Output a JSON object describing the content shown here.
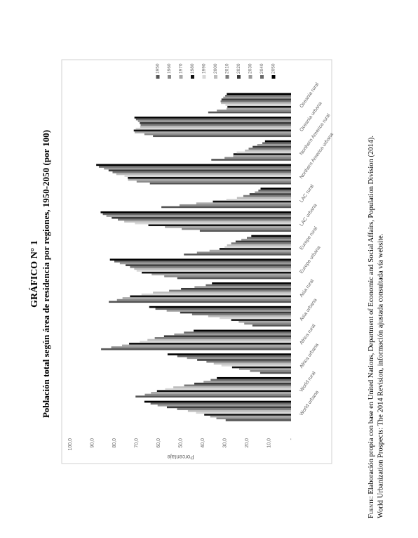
{
  "header": {
    "title": "GRÁFICO N° 1",
    "subtitle": "Población total según área de residencia por regiones, 1950-2050 (por 100)"
  },
  "chart_data": {
    "type": "bar",
    "categories": [
      "World urbana",
      "World rural",
      "Africa urbana",
      "Africa rural",
      "Asia urbana",
      "Asia rural",
      "Europe urbana",
      "Europe rural",
      "LAC urbana",
      "LAC rural",
      "Northern America urbana",
      "Northern America rural",
      "Oceania urbana",
      "Oceania rural"
    ],
    "series": [
      {
        "name": "1950",
        "color": "#555555",
        "values": [
          29.6,
          70.4,
          14.0,
          86.0,
          17.5,
          82.5,
          51.5,
          48.5,
          41.3,
          58.7,
          63.9,
          36.1,
          62.5,
          37.5
        ]
      },
      {
        "name": "1960",
        "color": "#8a8a8a",
        "values": [
          33.8,
          66.2,
          18.6,
          81.4,
          21.2,
          78.8,
          57.4,
          42.6,
          49.5,
          50.5,
          69.9,
          30.1,
          66.4,
          33.6
        ]
      },
      {
        "name": "1970",
        "color": "#a8a8a8",
        "values": [
          36.6,
          63.4,
          23.5,
          76.5,
          23.7,
          76.3,
          63.1,
          36.9,
          57.1,
          42.9,
          73.8,
          26.2,
          70.8,
          29.2
        ]
      },
      {
        "name": "1980",
        "color": "#111111",
        "values": [
          39.3,
          60.7,
          26.7,
          73.3,
          27.1,
          72.9,
          67.6,
          32.4,
          64.6,
          35.4,
          73.9,
          26.1,
          71.2,
          28.8
        ]
      },
      {
        "name": "1990",
        "color": "#d8d8d8",
        "values": [
          43.0,
          57.0,
          31.5,
          68.5,
          32.3,
          67.7,
          69.9,
          30.1,
          70.7,
          29.3,
          75.4,
          24.6,
          70.3,
          29.7
        ]
      },
      {
        "name": "2000",
        "color": "#bdbdbd",
        "values": [
          46.7,
          53.3,
          35.0,
          65.0,
          37.5,
          62.5,
          71.0,
          29.0,
          75.5,
          24.5,
          79.1,
          20.9,
          68.3,
          31.7
        ]
      },
      {
        "name": "2010",
        "color": "#7a7a7a",
        "values": [
          51.6,
          48.4,
          38.3,
          61.7,
          44.8,
          55.2,
          72.9,
          27.1,
          78.4,
          21.6,
          80.8,
          19.2,
          68.1,
          31.9
        ]
      },
      {
        "name": "2020",
        "color": "#3a3a3a",
        "values": [
          56.2,
          43.8,
          42.5,
          57.5,
          50.2,
          49.8,
          74.9,
          25.1,
          81.2,
          18.8,
          82.6,
          17.4,
          68.5,
          31.5
        ]
      },
      {
        "name": "2030",
        "color": "#9a9a9a",
        "values": [
          60.4,
          39.6,
          47.1,
          52.9,
          56.3,
          43.7,
          77.5,
          22.5,
          83.6,
          16.4,
          84.7,
          15.3,
          69.3,
          30.7
        ]
      },
      {
        "name": "2040",
        "color": "#6a6a6a",
        "values": [
          63.6,
          36.4,
          51.5,
          48.5,
          61.4,
          38.6,
          80.0,
          20.0,
          85.2,
          14.8,
          87.0,
          13.0,
          70.2,
          29.8
        ]
      },
      {
        "name": "2050",
        "color": "#000000",
        "values": [
          66.4,
          33.6,
          55.9,
          44.1,
          64.2,
          35.8,
          82.0,
          18.0,
          86.2,
          13.8,
          88.2,
          11.8,
          70.9,
          29.1
        ]
      }
    ],
    "ylim": [
      0,
      100
    ],
    "yticks": [
      {
        "value": 0,
        "label": "-"
      },
      {
        "value": 10,
        "label": "10,0"
      },
      {
        "value": 20,
        "label": "20,0"
      },
      {
        "value": 30,
        "label": "30,0"
      },
      {
        "value": 40,
        "label": "40,0"
      },
      {
        "value": 50,
        "label": "50,0"
      },
      {
        "value": 60,
        "label": "60,0"
      },
      {
        "value": 70,
        "label": "70,0"
      },
      {
        "value": 80,
        "label": "80,0"
      },
      {
        "value": 90,
        "label": "90,0"
      },
      {
        "value": 100,
        "label": "100,0"
      }
    ],
    "y_label": "Porcentaje",
    "grid": false
  },
  "source": {
    "label": "Fuente:",
    "lines": [
      "Elaboración propia con base en United Nations, Department of Economic and Social Affairs, Population Division (2014).",
      "World Urbanization Prospects: The 2014 Revision, información ajustada consultada vía website."
    ]
  }
}
